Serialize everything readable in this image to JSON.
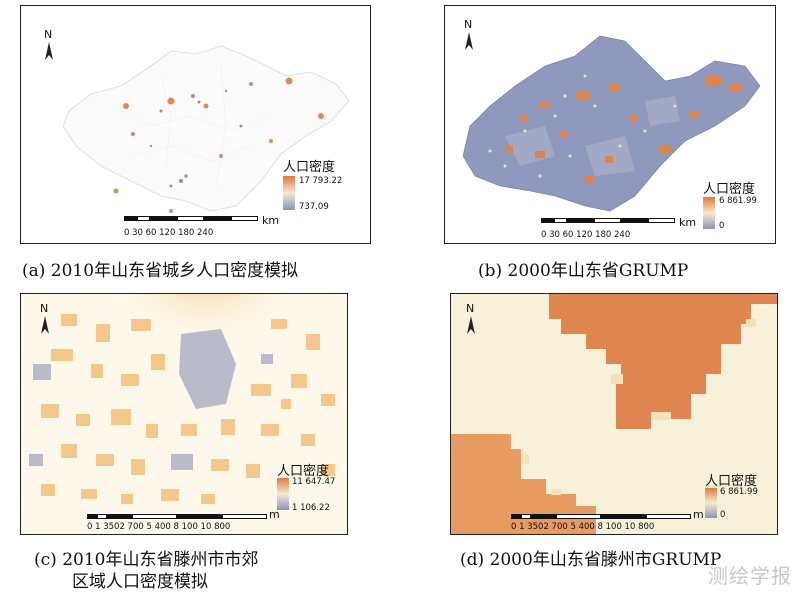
{
  "panels": [
    {
      "id": "a",
      "caption": "(a) 2010年山东省城乡人口密度模拟",
      "north": "N",
      "legend": {
        "title": "人口密度",
        "max": "17 793.22",
        "min": "737.09"
      },
      "scale": {
        "unit": "km",
        "ticks": "0 30 60     120     180     240"
      }
    },
    {
      "id": "b",
      "caption": "(b) 2000年山东省GRUMP",
      "north": "N",
      "legend": {
        "title": "人口密度",
        "max": "6 861.99",
        "min": "0"
      },
      "scale": {
        "unit": "km",
        "ticks": "0 30 60     120     180     240"
      }
    },
    {
      "id": "c",
      "caption_line1": "(c) 2010年山东省滕州市市郊",
      "caption_line2": "区域人口密度模拟",
      "north": "N",
      "legend": {
        "title": "人口密度",
        "max": "11 647.47",
        "min": "1 106.22"
      },
      "scale": {
        "unit": "m",
        "ticks": "0 1 3502 700      5 400      8 100      10 800"
      }
    },
    {
      "id": "d",
      "caption": "(d) 2000年山东省滕州市GRUMP",
      "north": "N",
      "legend": {
        "title": "人口密度",
        "max": "6 861.99",
        "min": "0"
      },
      "scale": {
        "unit": "m",
        "ticks": "0 1 3502 700      5 400      8 100      10 800"
      }
    }
  ],
  "watermark": "测绘学报",
  "colors": {
    "high": "#e07a3c",
    "low": "#8a94b8",
    "mid": "#f5ead0",
    "pale": "#f6f1d8"
  }
}
